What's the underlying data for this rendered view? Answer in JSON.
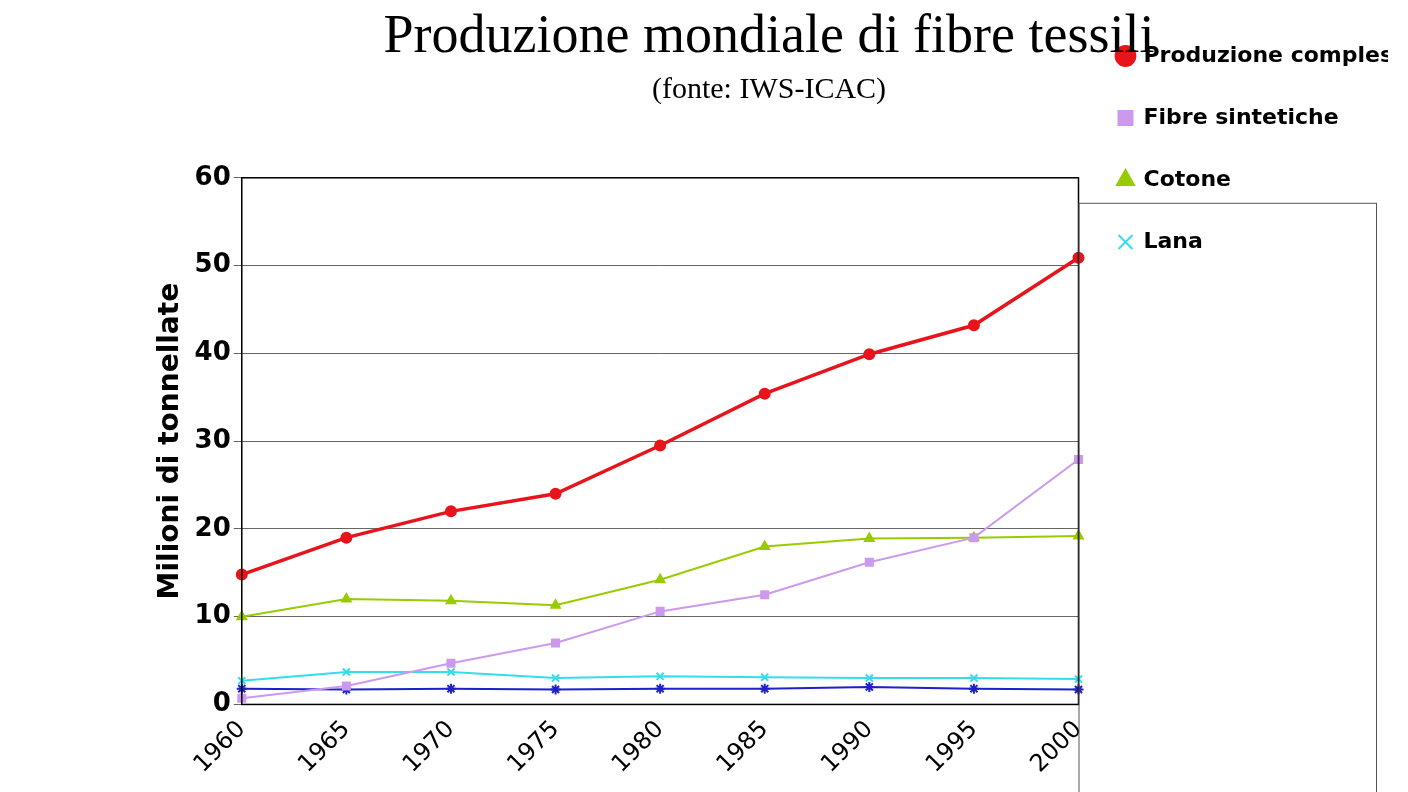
{
  "chart_data": {
    "type": "line",
    "title": "Produzione mondiale di fibre tessili",
    "subtitle": "(fonte: IWS-ICAC)",
    "y_label": "Milioni di tonnellate",
    "categories": [
      "1960",
      "1965",
      "1970",
      "1975",
      "1980",
      "1985",
      "1990",
      "1995",
      "2000"
    ],
    "series": [
      {
        "name": "Produzione complessiva mondiale",
        "color": "#e8141c",
        "marker": "circle",
        "values": [
          14.8,
          19,
          22,
          24,
          29.5,
          35.4,
          39.9,
          43.2,
          50.9
        ]
      },
      {
        "name": "Fibre sintetiche",
        "color": "#cc99ee",
        "marker": "square",
        "values": [
          0.7,
          2.1,
          4.7,
          7,
          10.6,
          12.5,
          16.2,
          19,
          27.9
        ]
      },
      {
        "name": "Cotone",
        "color": "#99cc00",
        "marker": "triangle",
        "values": [
          10,
          12,
          11.8,
          11.3,
          14.2,
          18,
          18.9,
          19,
          19.2
        ]
      },
      {
        "name": "Lana",
        "color": "#33ddee",
        "marker": "x",
        "values": [
          2.7,
          3.7,
          3.7,
          3,
          3.2,
          3.1,
          3,
          3,
          2.9
        ]
      },
      {
        "color": "#1f1fcc",
        "marker": "star",
        "values": [
          1.8,
          1.7,
          1.8,
          1.7,
          1.8,
          1.8,
          2,
          1.8,
          1.7
        ]
      }
    ],
    "ylim": [
      0,
      60
    ],
    "yticks": [
      0,
      10,
      20,
      30,
      40,
      50,
      60
    ],
    "grid": true,
    "legend": "right"
  }
}
